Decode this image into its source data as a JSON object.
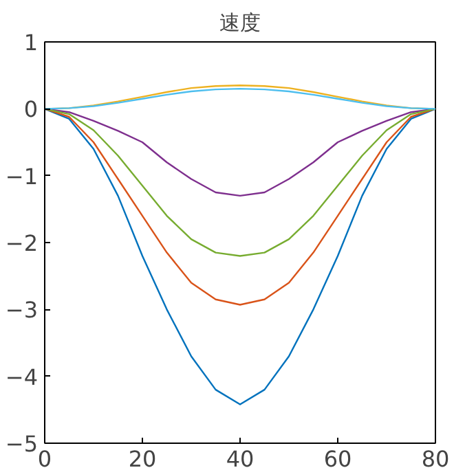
{
  "chart_data": {
    "type": "line",
    "title": "速度",
    "x": [
      0,
      5,
      10,
      15,
      20,
      25,
      30,
      35,
      40,
      45,
      50,
      55,
      60,
      65,
      70,
      75,
      80
    ],
    "xlim": [
      0,
      80
    ],
    "xticks": [
      0,
      20,
      40,
      60,
      80
    ],
    "ylim": [
      -5,
      1
    ],
    "yticks": [
      -5,
      -4,
      -3,
      -2,
      -1,
      0,
      1
    ],
    "grid": false,
    "marker": "none",
    "line_style": "solid",
    "series": [
      {
        "color": "#0072bd",
        "values": [
          0,
          -0.15,
          -0.6,
          -1.3,
          -2.2,
          -3.0,
          -3.7,
          -4.2,
          -4.42,
          -4.2,
          -3.7,
          -3.0,
          -2.2,
          -1.3,
          -0.6,
          -0.15,
          0
        ]
      },
      {
        "color": "#d95319",
        "values": [
          0,
          -0.12,
          -0.5,
          -1.05,
          -1.6,
          -2.15,
          -2.6,
          -2.85,
          -2.93,
          -2.85,
          -2.6,
          -2.15,
          -1.6,
          -1.05,
          -0.5,
          -0.12,
          0
        ]
      },
      {
        "color": "#edb120",
        "values": [
          0,
          0.01,
          0.05,
          0.11,
          0.18,
          0.25,
          0.31,
          0.34,
          0.35,
          0.34,
          0.31,
          0.25,
          0.18,
          0.11,
          0.05,
          0.01,
          0
        ]
      },
      {
        "color": "#7e2f8e",
        "values": [
          0,
          -0.05,
          -0.18,
          -0.33,
          -0.5,
          -0.8,
          -1.05,
          -1.25,
          -1.3,
          -1.25,
          -1.05,
          -0.8,
          -0.5,
          -0.33,
          -0.18,
          -0.05,
          0
        ]
      },
      {
        "color": "#77ac30",
        "values": [
          0,
          -0.08,
          -0.32,
          -0.7,
          -1.15,
          -1.6,
          -1.95,
          -2.15,
          -2.2,
          -2.15,
          -1.95,
          -1.6,
          -1.15,
          -0.7,
          -0.32,
          -0.08,
          0
        ]
      },
      {
        "color": "#4dbeee",
        "values": [
          0,
          0.01,
          0.04,
          0.09,
          0.15,
          0.21,
          0.26,
          0.29,
          0.3,
          0.29,
          0.26,
          0.21,
          0.15,
          0.09,
          0.04,
          0.01,
          0
        ]
      }
    ]
  }
}
